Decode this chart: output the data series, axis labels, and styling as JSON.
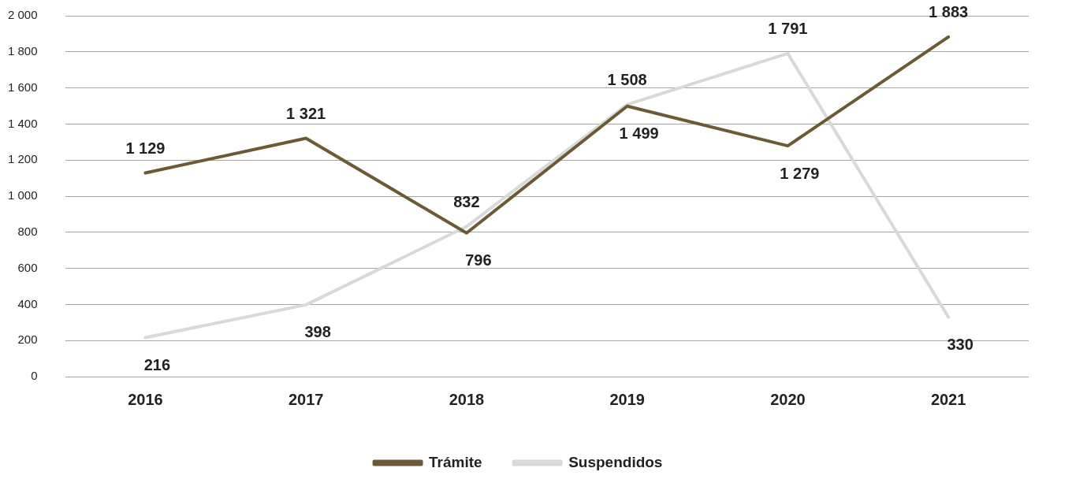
{
  "chart_data": {
    "type": "line",
    "categories": [
      "2016",
      "2017",
      "2018",
      "2019",
      "2020",
      "2021"
    ],
    "series": [
      {
        "name": "Trámite",
        "color": "#6b5a35",
        "values": [
          1129,
          1321,
          796,
          1499,
          1279,
          1883
        ],
        "value_labels": [
          "1 129",
          "1 321",
          "796",
          "1 499",
          "1 279",
          "1 883"
        ]
      },
      {
        "name": "Suspendidos",
        "color": "#d9d9d9",
        "values": [
          216,
          398,
          832,
          1508,
          1791,
          330
        ],
        "value_labels": [
          "216",
          "398",
          "832",
          "1 508",
          "1 791",
          "330"
        ]
      }
    ],
    "ylim": [
      0,
      2000
    ],
    "yticks": [
      0,
      200,
      400,
      600,
      800,
      {
        "value": 1000,
        "label": "1 000"
      },
      {
        "value": 1200,
        "label": "1 200"
      },
      {
        "value": 1400,
        "label": "1 400"
      },
      {
        "value": 1600,
        "label": "1 600"
      },
      {
        "value": 1800,
        "label": "1 800"
      },
      {
        "value": 2000,
        "label": "2 000"
      }
    ],
    "grid": "y",
    "legend": "bottom",
    "marker": "none",
    "line_style": "solid"
  }
}
